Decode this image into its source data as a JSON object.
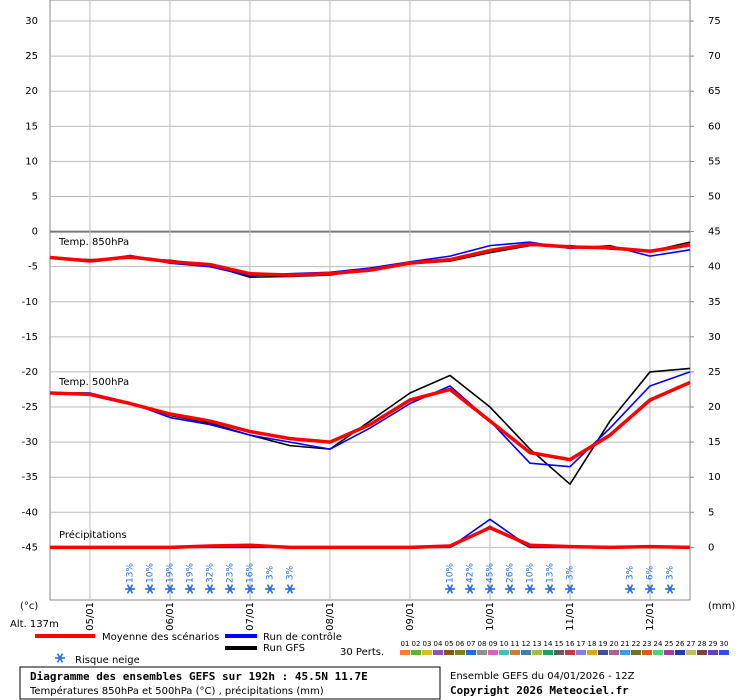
{
  "chart_data": {
    "type": "line",
    "title": "Diagramme des ensembles GEFS sur 192h : 45.5N 11.7E",
    "subtitle": "Températures 850hPa et 500hPa (°C) , précipitations (mm)",
    "run_label": "Ensemble GEFS du 04/01/2026 - 12Z",
    "copyright": "Copyright 2026 Meteociel.fr",
    "ylabel": "(°c)",
    "y2label": "(mm)",
    "altitude": "Alt. 137m",
    "annotations": [
      "Temp. 850hPa",
      "Temp. 500hPa",
      "Précipitations"
    ],
    "x": [
      0,
      12,
      24,
      36,
      48,
      60,
      72,
      84,
      96,
      108,
      120,
      132,
      144,
      156,
      168,
      180,
      192
    ],
    "xlim": [
      0,
      192
    ],
    "xticks": [
      {
        "value": 12,
        "label": "05/01"
      },
      {
        "value": 36,
        "label": "06/01"
      },
      {
        "value": 60,
        "label": "07/01"
      },
      {
        "value": 84,
        "label": "08/01"
      },
      {
        "value": 108,
        "label": "09/01"
      },
      {
        "value": 132,
        "label": "10/01"
      },
      {
        "value": 156,
        "label": "11/01"
      },
      {
        "value": 180,
        "label": "12/01"
      }
    ],
    "ylim": [
      -52.5,
      33
    ],
    "yticks": [
      30,
      25,
      20,
      15,
      10,
      5,
      0,
      -5,
      -10,
      -15,
      -20,
      -25,
      -30,
      -35,
      -40,
      -45
    ],
    "y2lim": [
      -7.5,
      78
    ],
    "y2ticks": [
      75,
      70,
      65,
      60,
      55,
      50,
      45,
      40,
      35,
      30,
      25,
      20,
      15,
      10,
      5,
      0
    ],
    "grid": true,
    "series": [
      {
        "name": "Moyenne des scénarios",
        "color": "#ff0000",
        "t850": [
          -3.7,
          -4.2,
          -3.6,
          -4.3,
          -4.7,
          -6.0,
          -6.2,
          -6.0,
          -5.5,
          -4.5,
          -4.0,
          -2.7,
          -1.8,
          -2.2,
          -2.3,
          -2.8,
          -1.9
        ],
        "t500": [
          -23,
          -23.2,
          -24.5,
          -26,
          -27,
          -28.5,
          -29.5,
          -30,
          -27.5,
          -24,
          -22.5,
          -27,
          -31.5,
          -32.5,
          -29,
          -24,
          -21.5
        ],
        "precip": [
          0,
          0,
          0,
          0,
          0.2,
          0.3,
          0,
          0,
          0,
          0,
          0.2,
          2.8,
          0.3,
          0.1,
          0,
          0.1,
          0
        ]
      },
      {
        "name": "Run de contrôle",
        "color": "#0000ff",
        "t850": [
          -3.7,
          -4.3,
          -3.4,
          -4.5,
          -5.0,
          -6.3,
          -6.0,
          -5.8,
          -5.2,
          -4.3,
          -3.5,
          -2.0,
          -1.5,
          -2.4,
          -2.0,
          -3.5,
          -2.6
        ],
        "t500": [
          -23,
          -23,
          -24.4,
          -26.5,
          -27.5,
          -29,
          -30,
          -31,
          -28,
          -24.5,
          -22,
          -27,
          -33,
          -33.5,
          -28,
          -22,
          -20
        ],
        "precip": [
          0,
          0,
          0,
          0,
          0,
          0,
          0,
          0,
          0,
          0,
          0,
          4,
          0,
          0,
          0,
          0,
          0
        ]
      },
      {
        "name": "Run GFS",
        "color": "#000000",
        "t850": [
          -3.7,
          -4.0,
          -3.8,
          -4.1,
          -4.8,
          -6.5,
          -6.4,
          -6.2,
          -5.3,
          -4.6,
          -4.2,
          -3.0,
          -2.0,
          -2.0,
          -2.5,
          -2.8,
          -1.5
        ],
        "t500": [
          -23,
          -23.1,
          -24.5,
          -26.2,
          -27.3,
          -29,
          -30.5,
          -31,
          -27,
          -23,
          -20.5,
          -25,
          -31,
          -36,
          -27,
          -20,
          -19.5
        ],
        "precip": [
          0,
          0,
          0,
          0,
          0,
          0,
          0,
          0,
          0,
          0,
          0,
          3,
          0,
          0,
          0,
          0,
          0
        ]
      }
    ],
    "snow": {
      "label": "Risque neige",
      "color": "#2a6fd6",
      "x": [
        24,
        30,
        36,
        42,
        48,
        54,
        60,
        66,
        72,
        120,
        126,
        132,
        138,
        144,
        150,
        156,
        174,
        180,
        186
      ],
      "values": [
        13,
        10,
        19,
        19,
        32,
        23,
        16,
        3,
        3,
        10,
        42,
        45,
        26,
        10,
        13,
        3,
        3,
        6,
        3
      ],
      "value_labels": [
        "13%",
        "10%",
        "19%",
        "19%",
        "32%",
        "23%",
        "16%",
        "3%",
        "3%",
        "10%",
        "42%",
        "45%",
        "26%",
        "10%",
        "13%",
        "3%",
        "3%",
        "6%",
        "3%"
      ]
    },
    "perturbations": {
      "label": "30 Perts.",
      "names": [
        "01",
        "02",
        "03",
        "04",
        "05",
        "06",
        "07",
        "08",
        "09",
        "10",
        "11",
        "12",
        "13",
        "14",
        "15",
        "16",
        "17",
        "18",
        "19",
        "20",
        "21",
        "22",
        "23",
        "24",
        "25",
        "26",
        "27",
        "28",
        "29",
        "30"
      ],
      "colors": [
        "#f08030",
        "#60b040",
        "#d0c020",
        "#9050c0",
        "#905020",
        "#808020",
        "#2070d0",
        "#909090",
        "#e060c0",
        "#40c0c0",
        "#c08040",
        "#4080a0",
        "#a0c040",
        "#20a060",
        "#606060",
        "#c04040",
        "#8080e0",
        "#e0a020",
        "#405090",
        "#b06090",
        "#30a0e0",
        "#707030",
        "#d06020",
        "#50d080",
        "#a040a0",
        "#2040a0",
        "#c0c060",
        "#804040",
        "#6040c0",
        "#3050e0"
      ]
    }
  }
}
